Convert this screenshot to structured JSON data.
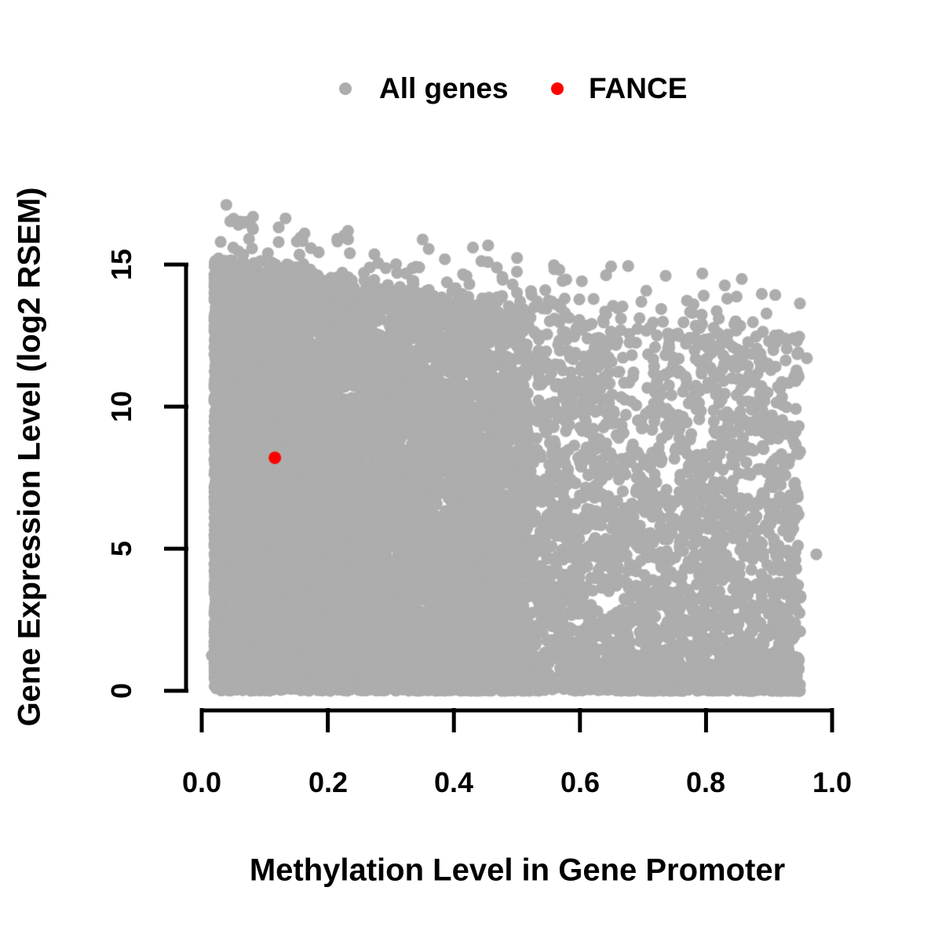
{
  "chart_data": {
    "type": "scatter",
    "title": "",
    "xlabel": "Methylation Level in Gene Promoter",
    "ylabel": "Gene Expression Level (log2 RSEM)",
    "xlim": [
      0.0,
      1.0
    ],
    "ylim": [
      0,
      17.5
    ],
    "x_ticks": [
      0.0,
      0.2,
      0.4,
      0.6,
      0.8,
      1.0
    ],
    "x_tick_labels": [
      "0.0",
      "0.2",
      "0.4",
      "0.6",
      "0.8",
      "1.0"
    ],
    "y_ticks": [
      0,
      5,
      10,
      15
    ],
    "y_tick_labels": [
      "0",
      "5",
      "10",
      "15"
    ],
    "grid": false,
    "legend_position": "top-center",
    "background_color": "#ffffff",
    "axis_color": "#000000",
    "legend": [
      {
        "label": "All genes",
        "color": "#adadad"
      },
      {
        "label": "FANCE",
        "color": "#ff0000"
      }
    ],
    "series": [
      {
        "name": "All genes",
        "color": "#adadad",
        "marker_radius_px": 7.6,
        "description": "~15000 genes; dense solid mass at low methylation across all expression levels 0-15, density thinning toward high methylation and high expression; upper boundary falls from ~15.5 at x=0.02 to ~12 at x=0.95; bottom edge solid at y=0 across full x range 0.02-0.95",
        "cloud": {
          "n": 12600,
          "seed": 42,
          "x_min": 0.015,
          "x_max": 0.955,
          "y_min": 0,
          "top_curve": [
            15.1,
            -3.3,
            0.35
          ],
          "left_weight": 0.55,
          "left_scale": 0.5,
          "left_power": 1.5,
          "bottom_power_base": 1.0,
          "bottom_power_slope": 1.1,
          "fringe_n": 260,
          "fringe_height": 1.9
        },
        "outlier_points": [
          [
            0.039,
            17.1
          ],
          [
            0.058,
            16.4
          ],
          [
            0.07,
            16.5
          ],
          [
            0.03,
            15.8
          ],
          [
            0.05,
            15.6
          ],
          [
            0.075,
            15.9
          ],
          [
            0.105,
            15.4
          ],
          [
            0.155,
            15.35
          ],
          [
            0.215,
            15.9
          ],
          [
            0.235,
            15.4
          ],
          [
            0.28,
            15.05
          ],
          [
            0.36,
            15.55
          ],
          [
            0.345,
            14.9
          ],
          [
            0.42,
            14.6
          ],
          [
            0.5,
            14.75
          ],
          [
            0.545,
            14.1
          ],
          [
            0.576,
            13.3
          ],
          [
            0.64,
            13.35
          ],
          [
            0.665,
            13.1
          ],
          [
            0.78,
            13.6
          ],
          [
            0.845,
            12.9
          ],
          [
            0.9,
            12.3
          ],
          [
            0.925,
            12.4
          ],
          [
            0.96,
            11.7
          ],
          [
            0.975,
            4.8
          ],
          [
            0.016,
            1.24
          ]
        ]
      },
      {
        "name": "FANCE",
        "color": "#ff0000",
        "marker_radius_px": 8,
        "points": [
          [
            0.116,
            8.2
          ]
        ]
      }
    ]
  }
}
